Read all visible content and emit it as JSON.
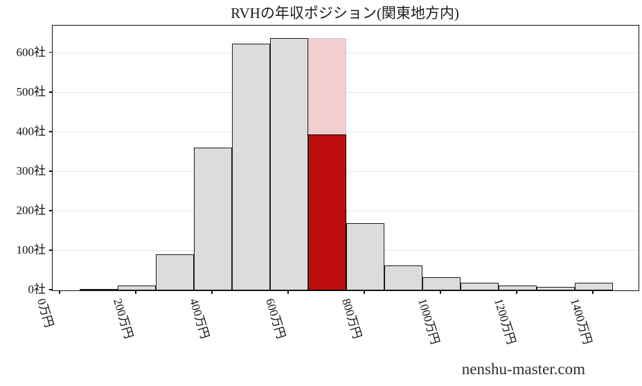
{
  "chart_data": {
    "type": "bar",
    "subtype": "histogram",
    "title": "RVHの年収ポジション(関東地方内)",
    "watermark": "nenshu-master.com",
    "xlabel": "",
    "ylabel": "",
    "x_unit": "万円",
    "y_unit": "社",
    "bin_width": 100,
    "xlim": [
      -20,
      1518
    ],
    "ylim": [
      0,
      670
    ],
    "grid": "horizontal",
    "legend": "none",
    "bins": [
      {
        "center": 100,
        "count": 3
      },
      {
        "center": 200,
        "count": 13
      },
      {
        "center": 300,
        "count": 92
      },
      {
        "center": 400,
        "count": 361
      },
      {
        "center": 500,
        "count": 625
      },
      {
        "center": 600,
        "count": 638
      },
      {
        "center": 700,
        "count": 638,
        "highlight": true,
        "highlight_value": 394
      },
      {
        "center": 800,
        "count": 170
      },
      {
        "center": 900,
        "count": 64
      },
      {
        "center": 1000,
        "count": 34
      },
      {
        "center": 1100,
        "count": 19
      },
      {
        "center": 1200,
        "count": 12
      },
      {
        "center": 1300,
        "count": 9
      },
      {
        "center": 1400,
        "count": 20
      }
    ],
    "highlight": {
      "bin_center": 700,
      "bin_total": 638,
      "position_value": 394
    },
    "x_ticks": [
      {
        "value": 0,
        "label": "0万円"
      },
      {
        "value": 200,
        "label": "200万円"
      },
      {
        "value": 400,
        "label": "400万円"
      },
      {
        "value": 600,
        "label": "600万円"
      },
      {
        "value": 800,
        "label": "800万円"
      },
      {
        "value": 1000,
        "label": "1000万円"
      },
      {
        "value": 1200,
        "label": "1200万円"
      },
      {
        "value": 1400,
        "label": "1400万円"
      }
    ],
    "y_ticks": [
      {
        "value": 0,
        "label": "0社"
      },
      {
        "value": 100,
        "label": "100社"
      },
      {
        "value": 200,
        "label": "200社"
      },
      {
        "value": 300,
        "label": "300社"
      },
      {
        "value": 400,
        "label": "400社"
      },
      {
        "value": 500,
        "label": "500社"
      },
      {
        "value": 600,
        "label": "600社"
      }
    ],
    "colors": {
      "bar_fill": "#dcdcdc",
      "bar_edge": "#1c1c1c",
      "highlight_fill": "#be0d0d",
      "highlight_overlay": "#f2cece",
      "grid_line": "#e7e7e7",
      "background": "#ffffff",
      "text": "#111111"
    }
  }
}
